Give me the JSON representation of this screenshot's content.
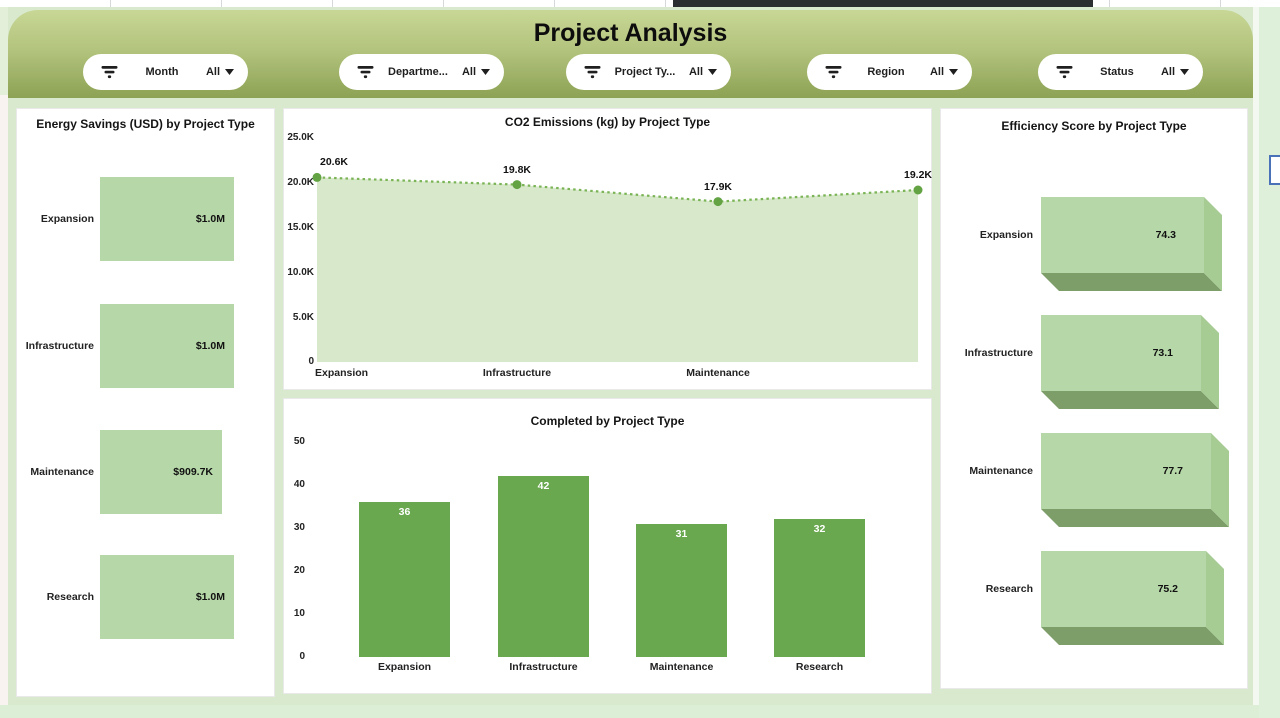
{
  "header": {
    "title": "Project Analysis"
  },
  "filters": [
    {
      "label": "Month",
      "value": "All"
    },
    {
      "label": "Departme...",
      "value": "All"
    },
    {
      "label": "Project Ty...",
      "value": "All"
    },
    {
      "label": "Region",
      "value": "All"
    },
    {
      "label": "Status",
      "value": "All"
    }
  ],
  "chart_data": [
    {
      "id": "energy_savings",
      "type": "bar",
      "orientation": "horizontal",
      "title": "Energy Savings (USD) by Project Type",
      "categories": [
        "Expansion",
        "Infrastructure",
        "Maintenance",
        "Research"
      ],
      "values": [
        1000000,
        1000000,
        909700,
        1000000
      ],
      "value_labels": [
        "$1.0M",
        "$1.0M",
        "$909.7K",
        "$1.0M"
      ],
      "bar_color": "#b6d7a8",
      "legend": "none",
      "grid": false
    },
    {
      "id": "co2_emissions",
      "type": "area",
      "title": "CO2 Emissions (kg) by Project Type",
      "categories": [
        "Expansion",
        "Infrastructure",
        "Maintenance",
        "Research"
      ],
      "values": [
        20600,
        19800,
        17900,
        19200
      ],
      "point_labels": [
        "20.6K",
        "19.8K",
        "17.9K",
        "19.2K"
      ],
      "x_axis_labels_visible": [
        "Expansion",
        "Infrastructure",
        "Maintenance"
      ],
      "yticks": [
        "25.0K",
        "20.0K",
        "15.0K",
        "10.0K",
        "5.0K",
        "0"
      ],
      "ylim": [
        0,
        25000
      ],
      "fill_color": "#d8e8ca",
      "line_color": "#7ab456",
      "line_style": "dotted",
      "marker_color": "#63a344",
      "grid": false
    },
    {
      "id": "completed",
      "type": "bar",
      "orientation": "vertical",
      "title": "Completed by Project Type",
      "categories": [
        "Expansion",
        "Infrastructure",
        "Maintenance",
        "Research"
      ],
      "values": [
        36,
        42,
        31,
        32
      ],
      "yticks": [
        "50",
        "40",
        "30",
        "20",
        "10",
        "0"
      ],
      "ylim": [
        0,
        50
      ],
      "bar_color": "#6aa84f",
      "value_label_color": "#ffffff",
      "grid": false
    },
    {
      "id": "efficiency_score",
      "type": "bar3d",
      "orientation": "horizontal",
      "title": "Efficiency Score by Project Type",
      "categories": [
        "Expansion",
        "Infrastructure",
        "Maintenance",
        "Research"
      ],
      "values": [
        74.3,
        73.1,
        77.7,
        75.2
      ],
      "bar_color": "#b6d7a8",
      "side_color": "#a6cc94",
      "bottom_color": "#7d9e69",
      "grid": false
    }
  ],
  "icons": {
    "filter": "funnel-icon",
    "dropdown": "chevron-down-icon"
  },
  "colors": {
    "page_background": "#d8e9ce",
    "header_gradient_top": "#c8d795",
    "header_gradient_bottom": "#8da254",
    "panel_background": "#ffffff"
  }
}
